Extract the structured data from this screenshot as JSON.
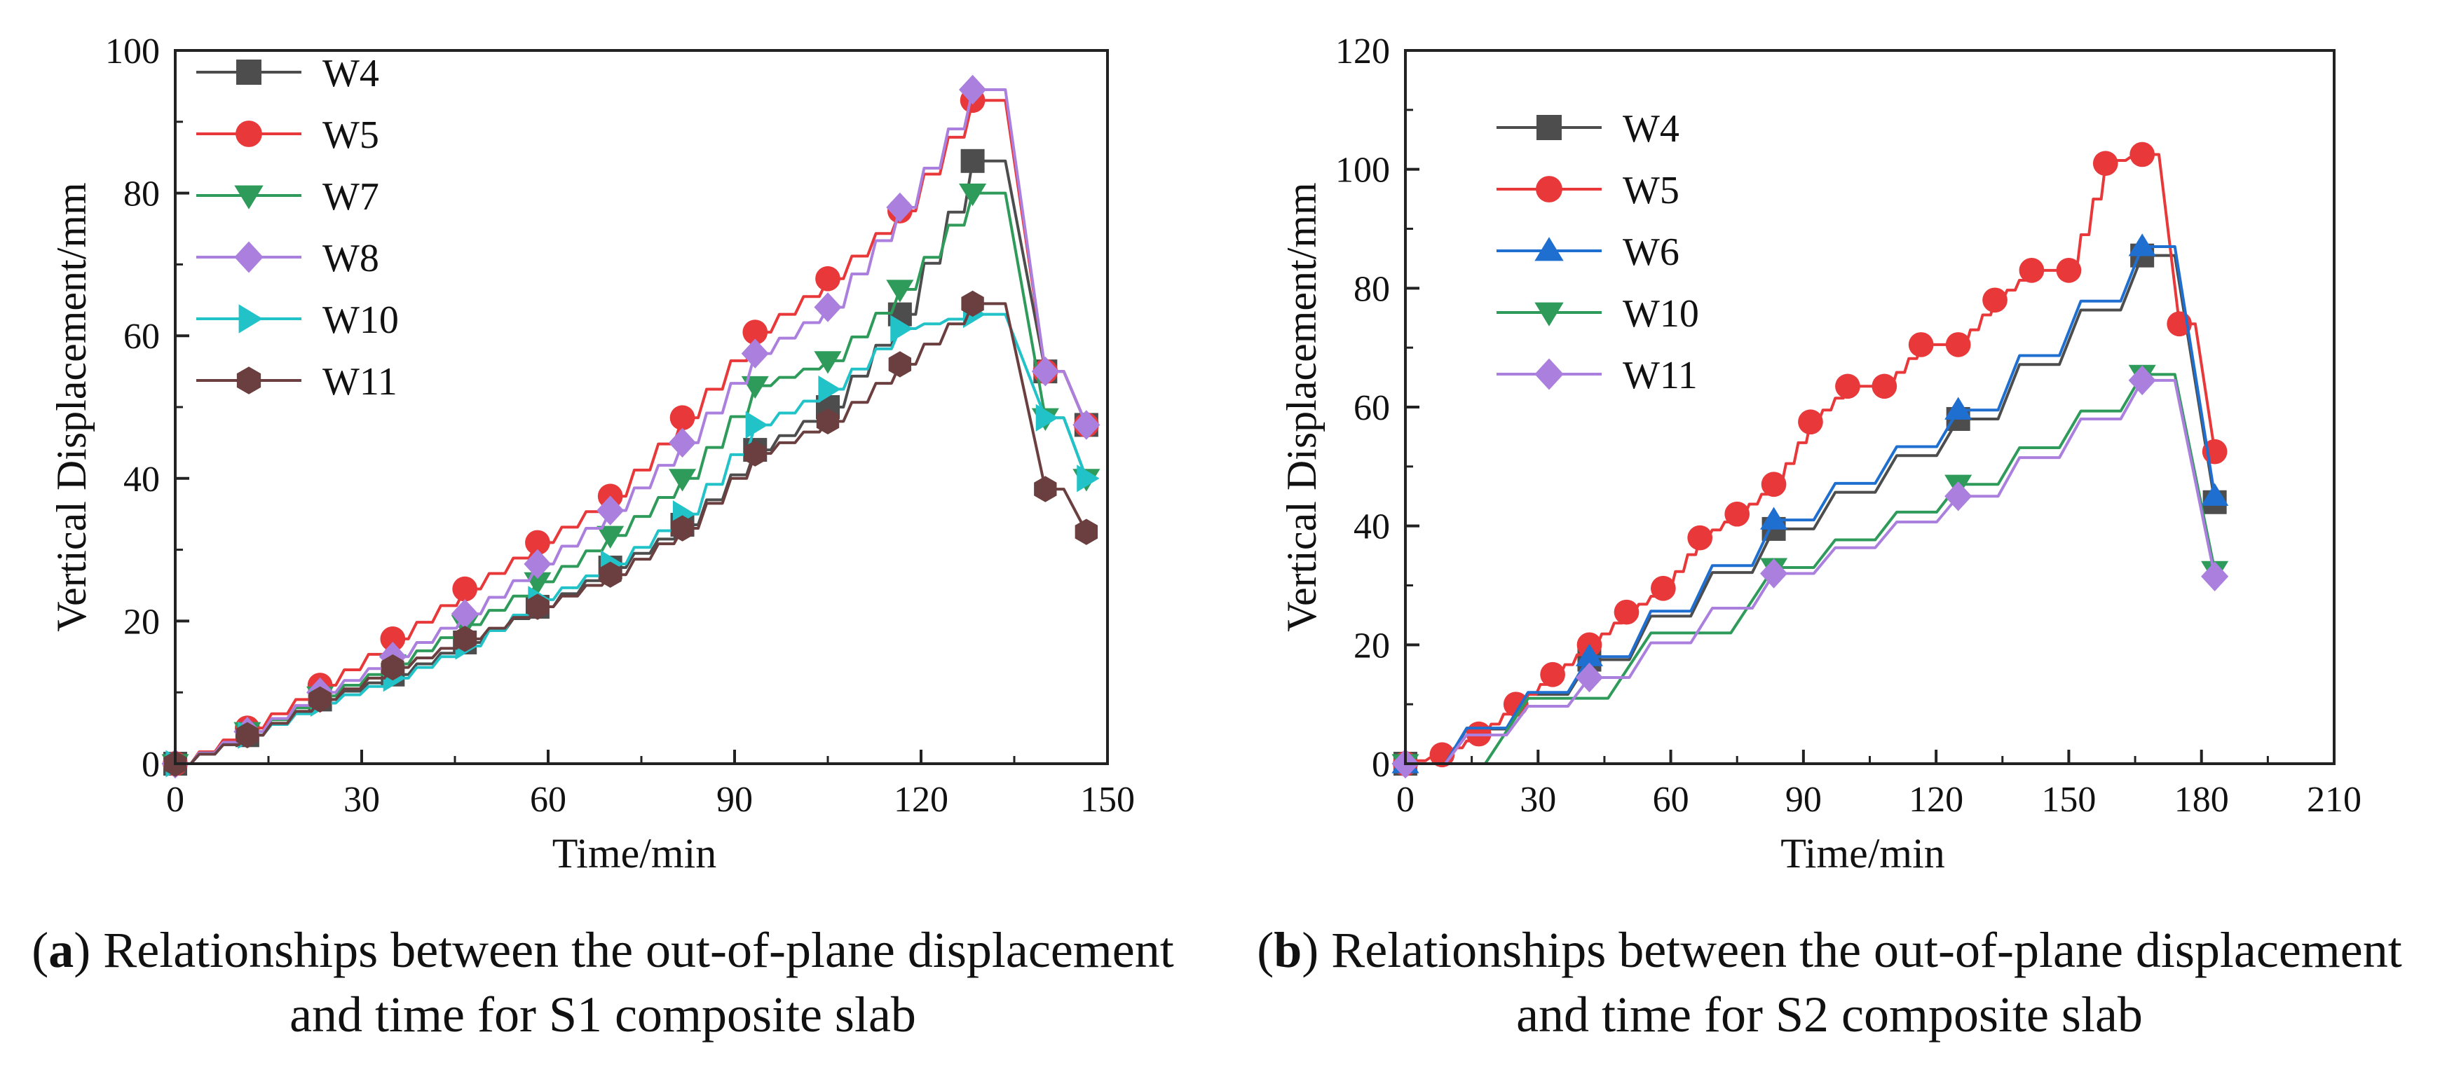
{
  "charts": [
    {
      "type": "line",
      "panel": "a",
      "title": "",
      "xlabel": "Time/min",
      "ylabel": "Vertical Displacement/mm",
      "xlim": [
        0,
        150
      ],
      "ylim": [
        0,
        100
      ],
      "xticks": [
        "0",
        "30",
        "60",
        "90",
        "120",
        "150"
      ],
      "yticks": [
        "0",
        "20",
        "40",
        "60",
        "80",
        "100"
      ],
      "legend_position": "top-left",
      "series": [
        {
          "name": "W4",
          "color": "#4d4d4d",
          "marker": "square",
          "x": [
            0,
            11.6,
            23.3,
            35,
            46.6,
            58.3,
            70,
            81.6,
            93.3,
            105,
            116.6,
            128.3,
            140,
            146.6
          ],
          "values": [
            0,
            4,
            9,
            12.5,
            17,
            22,
            27.5,
            33.5,
            44,
            50,
            63,
            84.5,
            55,
            47.5
          ]
        },
        {
          "name": "W5",
          "color": "#e8383a",
          "marker": "circle",
          "x": [
            0,
            11.6,
            23.3,
            35,
            46.6,
            58.3,
            70,
            81.6,
            93.3,
            105,
            116.6,
            128.3,
            140,
            146.6
          ],
          "values": [
            0,
            5,
            11,
            17.5,
            24.5,
            31,
            37.5,
            48.5,
            60.5,
            68,
            77.5,
            93,
            55,
            47.5
          ]
        },
        {
          "name": "W7",
          "color": "#2e9b5a",
          "marker": "triangle-down",
          "x": [
            0,
            11.6,
            23.3,
            35,
            46.6,
            58.3,
            70,
            81.6,
            93.3,
            105,
            116.6,
            128.3,
            140,
            146.6
          ],
          "values": [
            0,
            4.5,
            9.5,
            14,
            19.5,
            25.5,
            32,
            40,
            53,
            56.5,
            66.5,
            80,
            48.5,
            40
          ]
        },
        {
          "name": "W8",
          "color": "#ab7fde",
          "marker": "diamond",
          "x": [
            0,
            11.6,
            23.3,
            35,
            46.6,
            58.3,
            70,
            81.6,
            93.3,
            105,
            116.6,
            128.3,
            140,
            146.6
          ],
          "values": [
            0,
            4.5,
            10,
            15,
            21,
            28,
            35.5,
            45,
            57.5,
            64,
            78,
            94.5,
            55,
            47.5
          ]
        },
        {
          "name": "W10",
          "color": "#22c3c8",
          "marker": "triangle-right",
          "x": [
            0,
            11.6,
            23.3,
            35,
            46.6,
            58.3,
            70,
            81.6,
            93.3,
            105,
            116.6,
            128.3,
            140,
            146.6
          ],
          "values": [
            0,
            4,
            8.5,
            12,
            16.5,
            23,
            28,
            35,
            47.5,
            52.5,
            61,
            63,
            48.5,
            40
          ]
        },
        {
          "name": "W11",
          "color": "#6b3f3f",
          "marker": "hexagon",
          "x": [
            0,
            11.6,
            23.3,
            35,
            46.6,
            58.3,
            70,
            81.6,
            93.3,
            105,
            116.6,
            128.3,
            140,
            146.6
          ],
          "values": [
            0,
            4,
            9,
            13.5,
            17.5,
            22,
            26.5,
            33,
            43.5,
            48,
            56,
            64.5,
            38.5,
            32.5
          ]
        }
      ]
    },
    {
      "type": "line",
      "panel": "b",
      "title": "",
      "xlabel": "Time/min",
      "ylabel": "Vertical Displacement/mm",
      "xlim": [
        0,
        210
      ],
      "ylim": [
        0,
        120
      ],
      "xticks": [
        "0",
        "30",
        "60",
        "90",
        "120",
        "150",
        "180",
        "210"
      ],
      "yticks": [
        "0",
        "20",
        "40",
        "60",
        "80",
        "100",
        "120"
      ],
      "legend_position": "top-left",
      "series": [
        {
          "name": "W4",
          "color": "#4d4d4d",
          "marker": "square",
          "x": [
            0,
            41.6,
            83.3,
            125,
            166.6,
            183
          ],
          "values": [
            0,
            17.5,
            39.5,
            58,
            85.5,
            44
          ]
        },
        {
          "name": "W5",
          "color": "#e8383a",
          "marker": "circle",
          "x": [
            0,
            8.3,
            16.6,
            25,
            33.3,
            41.6,
            50,
            58.3,
            66.6,
            75,
            83.3,
            91.6,
            100,
            108.3,
            116.6,
            125,
            133.3,
            141.6,
            150,
            158.3,
            166.6,
            175,
            183
          ],
          "values": [
            0,
            1.5,
            5,
            10,
            15,
            20,
            25.5,
            29.5,
            38,
            42,
            47,
            57.5,
            63.5,
            63.5,
            70.5,
            70.5,
            78,
            83,
            83,
            101,
            102.5,
            74,
            52.5
          ]
        },
        {
          "name": "W6",
          "color": "#1f6fd1",
          "marker": "triangle-up",
          "x": [
            0,
            41.6,
            83.3,
            125,
            166.6,
            183
          ],
          "values": [
            0,
            18,
            41,
            59.5,
            87,
            45
          ]
        },
        {
          "name": "W10",
          "color": "#2e9b5a",
          "marker": "triangle-down",
          "x": [
            0,
            83.3,
            125,
            166.6,
            183
          ],
          "values": [
            0,
            33,
            47,
            65.5,
            32.5
          ]
        },
        {
          "name": "W11",
          "color": "#ab7fde",
          "marker": "diamond",
          "x": [
            0,
            41.6,
            83.3,
            125,
            166.6,
            183
          ],
          "values": [
            0,
            14.5,
            32,
            45,
            64.5,
            31.5
          ]
        }
      ]
    }
  ],
  "captions": {
    "a_letter": "a",
    "a_text": ") Relationships between the out-of-plane displacement and time for S1 composite slab",
    "b_letter": "b",
    "b_text": ") Relationships between the out-of-plane displacement and time for S2 composite slab"
  }
}
